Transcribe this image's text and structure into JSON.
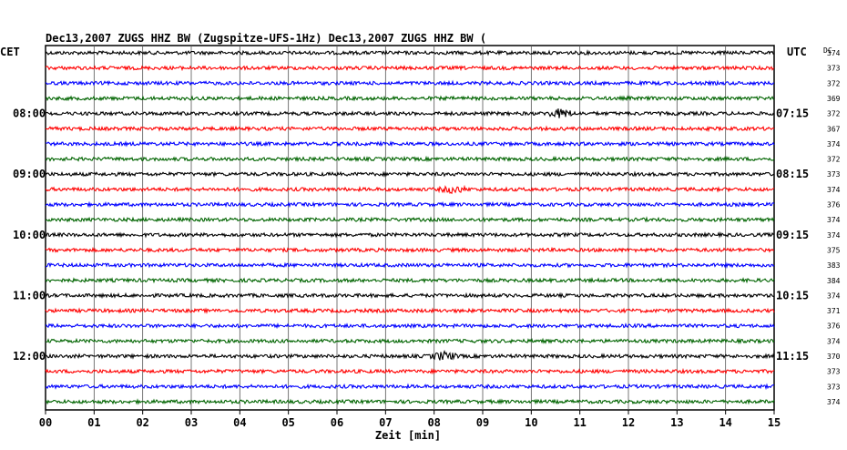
{
  "header": {
    "title": "Dec13,2007   ZUGS HHZ BW (Zugspitze-UFS-1Hz) Dec13,2007   ZUGS HHZ BW (",
    "left_timezone": "CET",
    "right_timezone": "UTC",
    "dc_label": "DC"
  },
  "chart_data": {
    "type": "line",
    "xlabel": "Zeit [min]",
    "xlim": [
      0,
      15
    ],
    "x_ticks": [
      "00",
      "01",
      "02",
      "03",
      "04",
      "05",
      "06",
      "07",
      "08",
      "09",
      "10",
      "11",
      "12",
      "13",
      "14",
      "15"
    ],
    "row_colors": [
      "#000000",
      "#ff0000",
      "#0000ff",
      "#006400"
    ],
    "left_hour_labels": [
      {
        "row": 4,
        "text": "08:00"
      },
      {
        "row": 8,
        "text": "09:00"
      },
      {
        "row": 12,
        "text": "10:00"
      },
      {
        "row": 16,
        "text": "11:00"
      },
      {
        "row": 20,
        "text": "12:00"
      }
    ],
    "right_hour_labels": [
      {
        "row": 4,
        "text": "07:15"
      },
      {
        "row": 8,
        "text": "08:15"
      },
      {
        "row": 12,
        "text": "09:15"
      },
      {
        "row": 16,
        "text": "10:15"
      },
      {
        "row": 20,
        "text": "11:15"
      }
    ],
    "dc_values": [
      "374",
      "373",
      "372",
      "369",
      "372",
      "367",
      "374",
      "372",
      "373",
      "374",
      "376",
      "374",
      "374",
      "375",
      "383",
      "384",
      "374",
      "371",
      "376",
      "374",
      "370",
      "373",
      "373",
      "374"
    ],
    "events": [
      {
        "row": 4,
        "minute": 10.6,
        "amplitude": 2.5
      },
      {
        "row": 9,
        "minute": 8.4,
        "amplitude": 2.0
      },
      {
        "row": 20,
        "minute": 8.2,
        "amplitude": 2.5
      }
    ]
  }
}
